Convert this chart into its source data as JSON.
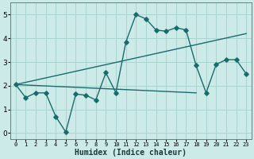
{
  "xlabel": "Humidex (Indice chaleur)",
  "background_color": "#cceae8",
  "grid_color": "#aad4d0",
  "line_color": "#1a6b6b",
  "xlim": [
    -0.5,
    23.5
  ],
  "ylim": [
    -0.25,
    5.5
  ],
  "xticks": [
    0,
    1,
    2,
    3,
    4,
    5,
    6,
    7,
    8,
    9,
    10,
    11,
    12,
    13,
    14,
    15,
    16,
    17,
    18,
    19,
    20,
    21,
    22,
    23
  ],
  "yticks": [
    0,
    1,
    2,
    3,
    4,
    5
  ],
  "line1_x": [
    0,
    1,
    2,
    3,
    4,
    5,
    6,
    7,
    8,
    9,
    10,
    11,
    12,
    13,
    14,
    15,
    16,
    17,
    18,
    19,
    20,
    21,
    22,
    23
  ],
  "line1_y": [
    2.05,
    1.5,
    1.7,
    1.7,
    0.7,
    0.05,
    1.65,
    1.6,
    1.4,
    2.55,
    1.7,
    3.85,
    5.0,
    4.82,
    4.35,
    4.3,
    4.45,
    4.35,
    2.85,
    1.7,
    2.9,
    3.1,
    3.1,
    2.5
  ],
  "line2_x": [
    0,
    18
  ],
  "line2_y": [
    2.05,
    1.7
  ],
  "line3_x": [
    0,
    23
  ],
  "line3_y": [
    2.05,
    4.2
  ],
  "extra_point_x": [
    23
  ],
  "extra_point_y": [
    4.2
  ],
  "marker": "D",
  "markersize": 2.8,
  "linewidth": 1.0
}
